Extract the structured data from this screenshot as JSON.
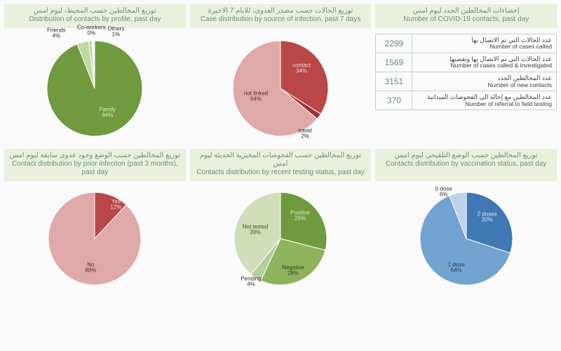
{
  "background_color": "#fafafa",
  "header_bg": "#e9f1dc",
  "header_fg": "#6b8e7f",
  "table_border": "#c8d4c2",
  "panels": {
    "profile": {
      "ar": "توزيع المخالطين حسب المحيط،\nليوم امس",
      "en": "Distribution of contacts by profile,\npast day",
      "type": "pie",
      "radius": 68,
      "slices": [
        {
          "label": "Family",
          "pct": 94,
          "color": "#6f9a3e",
          "lbl_color": "#dceac6",
          "off": [
            18,
            35
          ]
        },
        {
          "label": "Friends",
          "pct": 4,
          "color": "#c2d8a4",
          "lbl_color": "#333",
          "off": [
            -55,
            -78
          ]
        },
        {
          "label": "Co-workers",
          "pct": 0,
          "color": "#e8efd9",
          "lbl_color": "#333",
          "off": [
            -5,
            -82
          ]
        },
        {
          "label": "Others",
          "pct": 1,
          "color": "#b6cf9a",
          "lbl_color": "#333",
          "off": [
            30,
            -80
          ]
        }
      ]
    },
    "source": {
      "ar": "توزيع الحالات حسب مصدر العدوى،\nللايام 7 الاخيرة",
      "en": "Case distribution by source of infection,\npast 7 days",
      "type": "pie",
      "radius": 68,
      "slices": [
        {
          "label": "contact",
          "pct": 34,
          "color": "#b94747",
          "lbl_color": "#f2d6d6",
          "off": [
            30,
            -28
          ]
        },
        {
          "label": "travel",
          "pct": 2,
          "color": "#a13030",
          "lbl_color": "#333",
          "off": [
            35,
            65
          ]
        },
        {
          "label": "not linked",
          "pct": 64,
          "color": "#e0a9a9",
          "lbl_color": "#5a2a2a",
          "off": [
            -35,
            12
          ]
        }
      ]
    },
    "contacts_stats": {
      "ar": "إحصاءات المخالطين الجدد ليوم امس",
      "en": "Number of COVID-19 contacts,\npast day",
      "rows": [
        {
          "num": "2299",
          "ar": "عدد الحالات التي تم الاتصال بها",
          "en": "Number of cases called"
        },
        {
          "num": "1569",
          "ar": "عدد الحالات التي تم الاتصال بها وتقصيها",
          "en": "Number of cases called & investigated"
        },
        {
          "num": "3151",
          "ar": "عدد المخالطين الجدد",
          "en": "Number of new contacts"
        },
        {
          "num": "370",
          "ar": "عدد المخالطين مع إحالة الى الفحوصات الميدانية",
          "en": "Number of referral to field testing"
        }
      ]
    },
    "prior": {
      "ar": "توزيع المخالطين حسب الوضع وجود عدوى سابقة\nليوم امس",
      "en": "Contact distribution by prior infection\n(past 3 months), past day",
      "type": "pie",
      "radius": 66,
      "slices": [
        {
          "label": "Yes",
          "pct": 12,
          "color": "#b94747",
          "lbl_color": "#f2d6d6",
          "off": [
            30,
            -48
          ]
        },
        {
          "label": "No",
          "pct": 88,
          "color": "#e0a9a9",
          "lbl_color": "#5a2a2a",
          "off": [
            -6,
            42
          ]
        }
      ]
    },
    "testing": {
      "ar": "توزيع المخالطين حسب الفحوصات المخبرية الحديثة\nليوم امس",
      "en": "Contacts distribution by recent testing\nstatus, past  day",
      "type": "pie",
      "radius": 66,
      "slices": [
        {
          "label": "Positive",
          "pct": 29,
          "color": "#6f9a3e",
          "lbl_color": "#dceac6",
          "off": [
            28,
            -32
          ]
        },
        {
          "label": "Negative",
          "pct": 28,
          "color": "#8fb35d",
          "lbl_color": "#2e4418",
          "off": [
            18,
            46
          ]
        },
        {
          "label": "Pending",
          "pct": 4,
          "color": "#b6cf9a",
          "lbl_color": "#333",
          "off": [
            -42,
            62
          ]
        },
        {
          "label": "Not tested",
          "pct": 39,
          "color": "#d0dfba",
          "lbl_color": "#3a5522",
          "off": [
            -36,
            -12
          ]
        }
      ]
    },
    "vacc": {
      "ar": "توزيع المخالطين حسب الوضع التلقيحي\nليوم امس",
      "en": "Contacts distribution by vaccination\nstatus, past  day",
      "type": "pie",
      "radius": 66,
      "slices": [
        {
          "label": "2 doses",
          "pct": 30,
          "color": "#3f78b5",
          "lbl_color": "#d7e6f4",
          "off": [
            30,
            -30
          ]
        },
        {
          "label": "1 dose",
          "pct": 64,
          "color": "#73a3d1",
          "lbl_color": "#1d3a57",
          "off": [
            -14,
            42
          ]
        },
        {
          "label": "0 dose",
          "pct": 6,
          "color": "#bcd3e9",
          "lbl_color": "#333",
          "off": [
            -32,
            -66
          ]
        }
      ]
    }
  }
}
